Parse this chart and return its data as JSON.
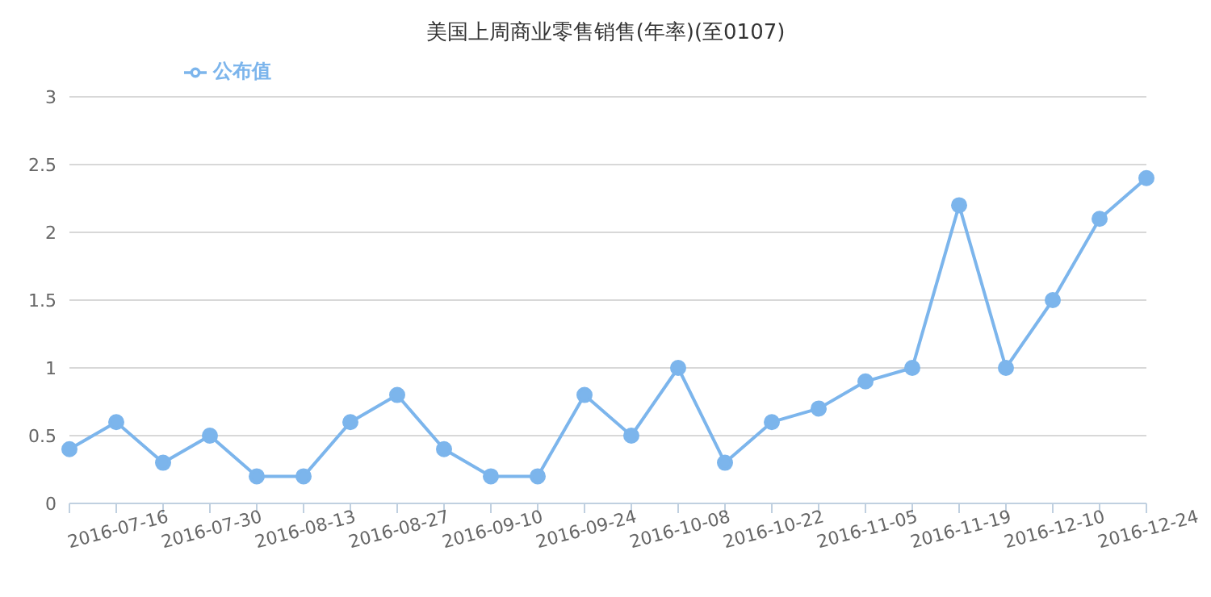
{
  "chart_data": {
    "type": "line",
    "title": "美国上周商业零售销售(年率)(至0107)",
    "categories": [
      null,
      "2016-07-16",
      null,
      "2016-07-30",
      null,
      "2016-08-13",
      null,
      "2016-08-27",
      null,
      "2016-09-10",
      null,
      "2016-09-24",
      null,
      "2016-10-08",
      null,
      "2016-10-22",
      null,
      "2016-11-05",
      null,
      "2016-11-19",
      null,
      "2016-12-10",
      null,
      "2016-12-24"
    ],
    "series": [
      {
        "name": "公布值",
        "color": "#7cb5ec",
        "values": [
          0.4,
          0.6,
          0.3,
          0.5,
          0.2,
          0.2,
          0.6,
          0.8,
          0.4,
          0.2,
          0.2,
          0.8,
          0.5,
          1.0,
          0.3,
          0.6,
          0.7,
          0.9,
          1.0,
          2.2,
          1.0,
          1.5,
          2.1,
          2.4
        ]
      }
    ],
    "ylim": [
      0,
      3
    ],
    "yticks": [
      0,
      0.5,
      1,
      1.5,
      2,
      2.5,
      3
    ],
    "grid": "y",
    "legend": "top left",
    "marker": "circle",
    "line_style": "solid"
  }
}
